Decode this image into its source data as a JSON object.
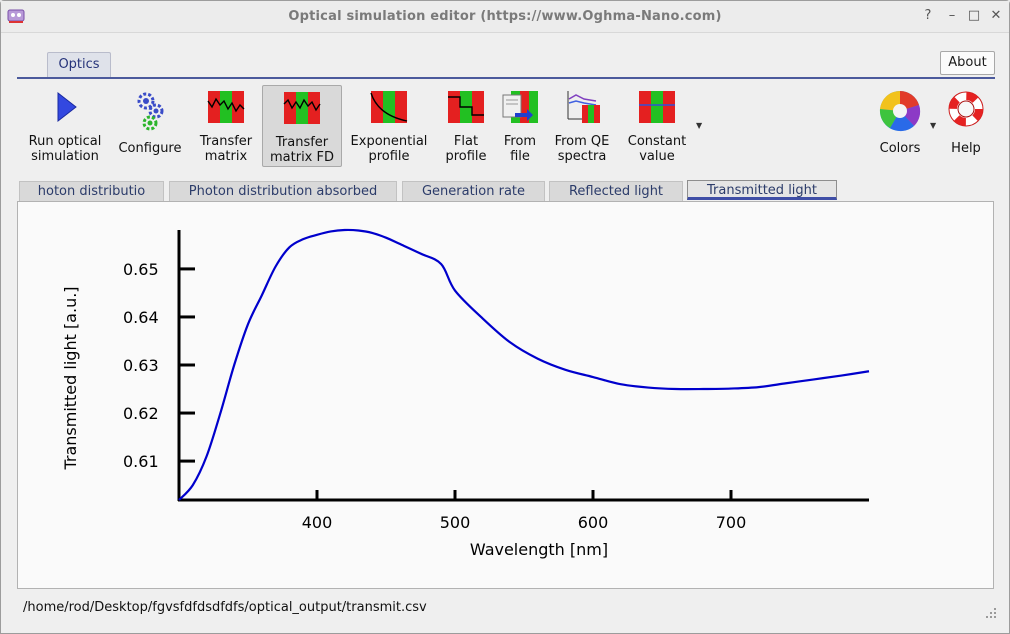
{
  "window": {
    "title": "Optical simulation editor (https://www.Oghma-Nano.com)",
    "controls": [
      "?",
      "–",
      "□",
      "✕"
    ]
  },
  "ribbon": {
    "tab_label": "Optics",
    "about_label": "About",
    "tools": [
      {
        "label1": "Run optical",
        "label2": "simulation",
        "icon": "play-icon"
      },
      {
        "label1": "Configure",
        "label2": "",
        "icon": "gears-icon"
      },
      {
        "label1": "Transfer",
        "label2": "matrix",
        "icon": "transfer-matrix-icon"
      },
      {
        "label1": "Transfer",
        "label2": "matrix FD",
        "icon": "transfer-matrix-fd-icon"
      },
      {
        "label1": "Exponential",
        "label2": "profile",
        "icon": "exponential-profile-icon"
      },
      {
        "label1": "Flat",
        "label2": "profile",
        "icon": "flat-profile-icon"
      },
      {
        "label1": "From",
        "label2": "file",
        "icon": "from-file-icon"
      },
      {
        "label1": "From QE",
        "label2": "spectra",
        "icon": "qe-spectra-icon"
      },
      {
        "label1": "Constant",
        "label2": "value",
        "icon": "constant-value-icon"
      },
      {
        "label1": "Colors",
        "label2": "",
        "icon": "color-wheel-icon"
      },
      {
        "label1": "Help",
        "label2": "",
        "icon": "lifebuoy-icon"
      }
    ]
  },
  "tabs": [
    {
      "label": "hoton distributio"
    },
    {
      "label": "Photon distribution absorbed"
    },
    {
      "label": "Generation rate"
    },
    {
      "label": "Reflected light"
    },
    {
      "label": "Transmitted light"
    }
  ],
  "chart_data": {
    "type": "line",
    "title": "",
    "xlabel": "Wavelength [nm]",
    "ylabel": "Transmitted light [a.u.]",
    "xlim": [
      300,
      800
    ],
    "ylim": [
      0.6019,
      0.6581
    ],
    "xticks": [
      400,
      500,
      600,
      700
    ],
    "yticks": [
      0.61,
      0.62,
      0.63,
      0.64,
      0.65
    ],
    "ytick_labels": [
      "0.61",
      "0.62",
      "0.63",
      "0.64",
      "0.65"
    ],
    "xtick_labels": [
      "400",
      "500",
      "600",
      "700"
    ],
    "grid": false,
    "series": [
      {
        "color": "#0000cc",
        "x": [
          300,
          310,
          320,
          330,
          340,
          350,
          360,
          370,
          380,
          390,
          400,
          410,
          420,
          430,
          440,
          450,
          460,
          475,
          490,
          500,
          520,
          540,
          560,
          580,
          600,
          620,
          640,
          660,
          680,
          700,
          720,
          740,
          760,
          780,
          800
        ],
        "y": [
          0.6019,
          0.605,
          0.611,
          0.62,
          0.63,
          0.6385,
          0.6445,
          0.6505,
          0.6545,
          0.6562,
          0.6571,
          0.6578,
          0.6581,
          0.658,
          0.6575,
          0.6565,
          0.6552,
          0.6532,
          0.651,
          0.6455,
          0.6397,
          0.6347,
          0.6313,
          0.629,
          0.6275,
          0.626,
          0.6253,
          0.625,
          0.625,
          0.6251,
          0.6254,
          0.6262,
          0.627,
          0.6278,
          0.6287
        ]
      }
    ]
  },
  "status": {
    "path": "/home/rod/Desktop/fgvsfdfdsdfdfs/optical_output/transmit.csv"
  },
  "colors": {
    "accent": "#3f4ea6",
    "curve": "#0000cc",
    "ribbon_line": "#4c5a9c"
  }
}
